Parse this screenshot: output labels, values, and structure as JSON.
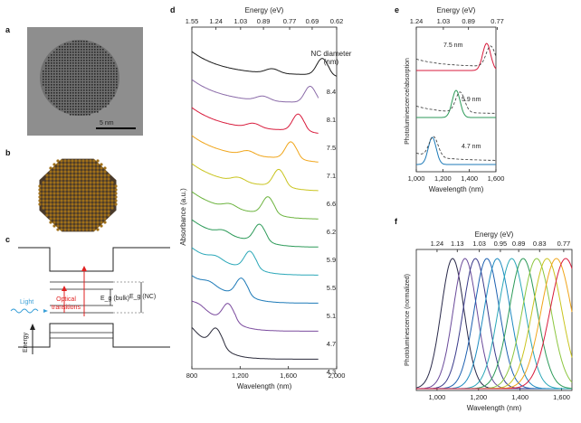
{
  "panels": {
    "a": {
      "label": "a",
      "scale_bar": "5 nm"
    },
    "b": {
      "label": "b"
    },
    "c": {
      "label": "c",
      "light_label": "Light",
      "transitions_label": "Optical\ntransitions",
      "eg_bulk_label": "E_g (bulk)",
      "eg_nc_label": "E_g (NC)",
      "energy_label": "Energy"
    }
  },
  "chart_data": [
    {
      "id": "d",
      "label": "d",
      "type": "line",
      "xlabel": "Wavelength (nm)",
      "ylabel": "Absorbance (a.u.)",
      "top_axis_label": "Energy (eV)",
      "xlim": [
        800,
        2000
      ],
      "x_ticks": [
        800,
        1200,
        1600,
        2000
      ],
      "x_tick_labels": [
        "800",
        "1,200",
        "1,600",
        "2,000"
      ],
      "top_ticks": [
        "1.55",
        "1.24",
        "1.03",
        "0.89",
        "0.77",
        "0.69",
        "0.62"
      ],
      "legend_title": "NC diameter\n(nm)",
      "series": [
        {
          "name": "8.4",
          "color": "#1a1a1a",
          "peak_nm": 1880
        },
        {
          "name": "8.1",
          "color": "#8a6aa8",
          "peak_nm": 1780
        },
        {
          "name": "7.5",
          "color": "#d81b3c",
          "peak_nm": 1680
        },
        {
          "name": "7.1",
          "color": "#f0a51a",
          "peak_nm": 1620
        },
        {
          "name": "6.6",
          "color": "#c9c41f",
          "peak_nm": 1520
        },
        {
          "name": "6.2",
          "color": "#6bb33d",
          "peak_nm": 1430
        },
        {
          "name": "5.9",
          "color": "#2c9a58",
          "peak_nm": 1360
        },
        {
          "name": "5.5",
          "color": "#2aa7b8",
          "peak_nm": 1280
        },
        {
          "name": "5.1",
          "color": "#1d7ab8",
          "peak_nm": 1210
        },
        {
          "name": "4.7",
          "color": "#7b4b9e",
          "peak_nm": 1100
        },
        {
          "name": "4.3",
          "color": "#2a2a3a",
          "peak_nm": 1000
        }
      ]
    },
    {
      "id": "e",
      "label": "e",
      "type": "line",
      "xlabel": "Wavelength (nm)",
      "ylabel": "Photoluminescence/absorption",
      "top_axis_label": "Energy (eV)",
      "xlim": [
        1000,
        1600
      ],
      "x_tick_labels": [
        "1,000",
        "1,200",
        "1,400",
        "1,600"
      ],
      "top_ticks": [
        "1.24",
        "1.03",
        "0.89",
        "0.77"
      ],
      "series": [
        {
          "name": "7.5 nm",
          "color": "#d81b3c",
          "abs_peak_nm": 1560,
          "pl_peak_nm": 1530
        },
        {
          "name": "5.9 nm",
          "color": "#2c9a58",
          "abs_peak_nm": 1330,
          "pl_peak_nm": 1300
        },
        {
          "name": "4.7 nm",
          "color": "#1d7ab8",
          "abs_peak_nm": 1130,
          "pl_peak_nm": 1120
        }
      ]
    },
    {
      "id": "f",
      "label": "f",
      "type": "line",
      "xlabel": "Wavelength (nm)",
      "ylabel": "Photoluminescence (normalized)",
      "top_axis_label": "Energy (eV)",
      "xlim": [
        900,
        1650
      ],
      "x_tick_labels": [
        "1,000",
        "1,200",
        "1,400",
        "1,600"
      ],
      "top_ticks": [
        "1.24",
        "1.13",
        "1.03",
        "0.95",
        "0.89",
        "0.83",
        "0.77"
      ],
      "peaks_nm": [
        1075,
        1135,
        1185,
        1240,
        1290,
        1360,
        1415,
        1480,
        1530,
        1575,
        1620
      ],
      "colors": [
        "#2a2a4a",
        "#6a4a9a",
        "#3a3a8a",
        "#1d60b0",
        "#1d8ac0",
        "#2aa7b8",
        "#2c9a58",
        "#8cc63f",
        "#c9c41f",
        "#f0a51a",
        "#d81b3c"
      ]
    }
  ]
}
